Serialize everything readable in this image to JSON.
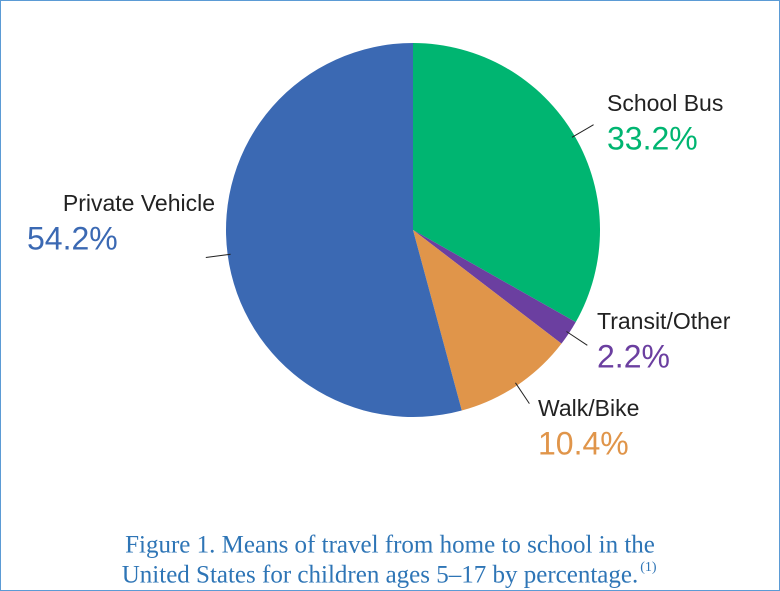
{
  "chart_data": {
    "type": "pie",
    "categories": [
      "School Bus",
      "Transit/Other",
      "Walk/Bike",
      "Private Vehicle"
    ],
    "values": [
      33.2,
      2.2,
      10.4,
      54.2
    ],
    "value_labels": [
      "33.2%",
      "2.2%",
      "10.4%",
      "54.2%"
    ],
    "colors": [
      "#00b571",
      "#6b3fa0",
      "#e0954a",
      "#3b69b3"
    ],
    "caption": [
      "Figure 1. Means of travel from home to school in the",
      "United States for children ages 5–17 by percentage."
    ],
    "caption_ref": "(1)"
  }
}
